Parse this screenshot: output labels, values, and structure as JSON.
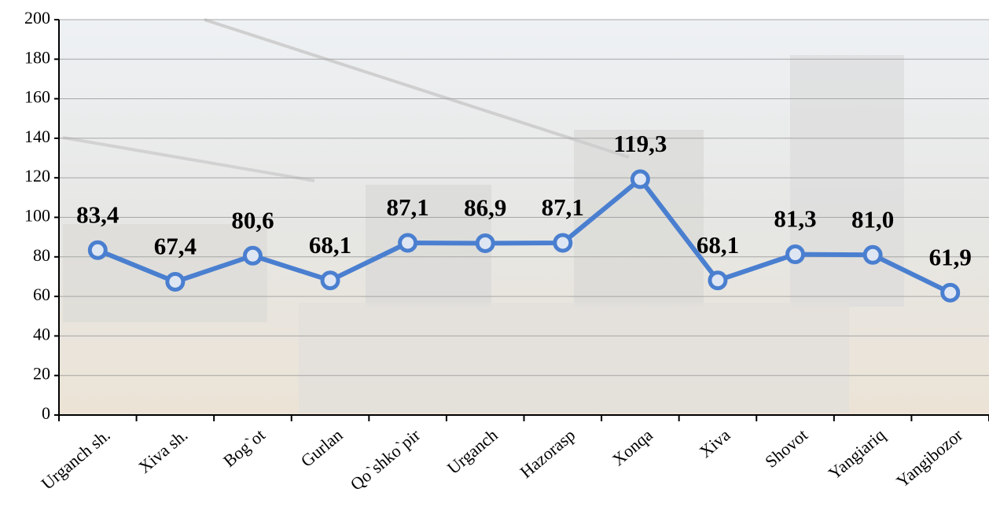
{
  "chart_data": {
    "type": "line",
    "categories": [
      "Urganch sh.",
      "Xiva sh.",
      "Bog`ot",
      "Gurlan",
      "Qo`shko`pir",
      "Urganch",
      "Hazorasp",
      "Xonqa",
      "Xiva",
      "Shovot",
      "Yangiariq",
      "Yangibozor"
    ],
    "values": [
      83.4,
      67.4,
      80.6,
      68.1,
      87.1,
      86.9,
      87.1,
      119.3,
      68.1,
      81.3,
      81.0,
      61.9
    ],
    "value_labels": [
      "83,4",
      "67,4",
      "80,6",
      "68,1",
      "87,1",
      "86,9",
      "87,1",
      "119,3",
      "68,1",
      "81,3",
      "81,0",
      "61,9"
    ],
    "color": "#4a7fd0",
    "ylim": [
      0,
      200
    ],
    "yticks": [
      0,
      20,
      40,
      60,
      80,
      100,
      120,
      140,
      160,
      180,
      200
    ],
    "grid": true
  }
}
